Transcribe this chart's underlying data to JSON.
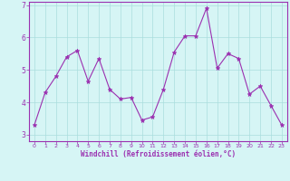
{
  "x": [
    0,
    1,
    2,
    3,
    4,
    5,
    6,
    7,
    8,
    9,
    10,
    11,
    12,
    13,
    14,
    15,
    16,
    17,
    18,
    19,
    20,
    21,
    22,
    23
  ],
  "y": [
    3.3,
    4.3,
    4.8,
    5.4,
    5.6,
    4.65,
    5.35,
    4.4,
    4.1,
    4.15,
    3.45,
    3.55,
    4.4,
    5.55,
    6.05,
    6.05,
    6.9,
    5.05,
    5.5,
    5.35,
    4.25,
    4.5,
    3.9,
    3.3
  ],
  "line_color": "#9B30B0",
  "marker": "*",
  "marker_size": 3.5,
  "background_color": "#d6f5f5",
  "grid_color": "#aadddd",
  "xlabel": "Windchill (Refroidissement éolien,°C)",
  "xlabel_color": "#9B30B0",
  "tick_color": "#9B30B0",
  "spine_color": "#9B30B0",
  "ylim": [
    2.8,
    7.1
  ],
  "yticks": [
    3,
    4,
    5,
    6,
    7
  ],
  "xlim": [
    -0.5,
    23.5
  ],
  "xticks": [
    0,
    1,
    2,
    3,
    4,
    5,
    6,
    7,
    8,
    9,
    10,
    11,
    12,
    13,
    14,
    15,
    16,
    17,
    18,
    19,
    20,
    21,
    22,
    23
  ]
}
